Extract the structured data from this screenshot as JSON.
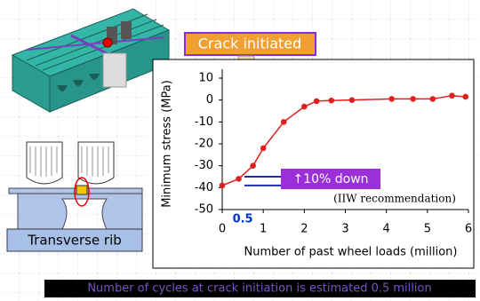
{
  "chart_data": {
    "type": "line",
    "x_label": "Number of past wheel loads (million)",
    "y_label": "Minimum stress (MPa)",
    "x": [
      0,
      0.4,
      0.75,
      1.0,
      1.5,
      2.0,
      2.3,
      2.66,
      3.16,
      4.13,
      4.65,
      5.13,
      5.6,
      5.93
    ],
    "values": [
      -39,
      -36,
      -30,
      -22,
      -10,
      -3,
      -0.5,
      -0.2,
      0,
      0.5,
      0.5,
      0.5,
      2,
      1.5
    ],
    "color": "#e02020",
    "xlim": [
      0,
      6
    ],
    "xticks": [
      0,
      1,
      2,
      3,
      4,
      5,
      6
    ],
    "ylim": [
      -50,
      10
    ],
    "yticks": [
      -50,
      -40,
      -30,
      -20,
      -10,
      0,
      10
    ],
    "grid": false,
    "reference_lines": [
      -39,
      -35
    ],
    "reference_color": "#1a2fb0",
    "marker_x": {
      "value": 0.5,
      "label": "0.5"
    },
    "annotations": {
      "crack": "Crack initiated",
      "down": "↑10% down",
      "iiw": "(IIW recommendation)",
      "rib": "Transverse rib",
      "banner": "Number of cycles at crack initiation is estimated 0.5 million"
    }
  }
}
